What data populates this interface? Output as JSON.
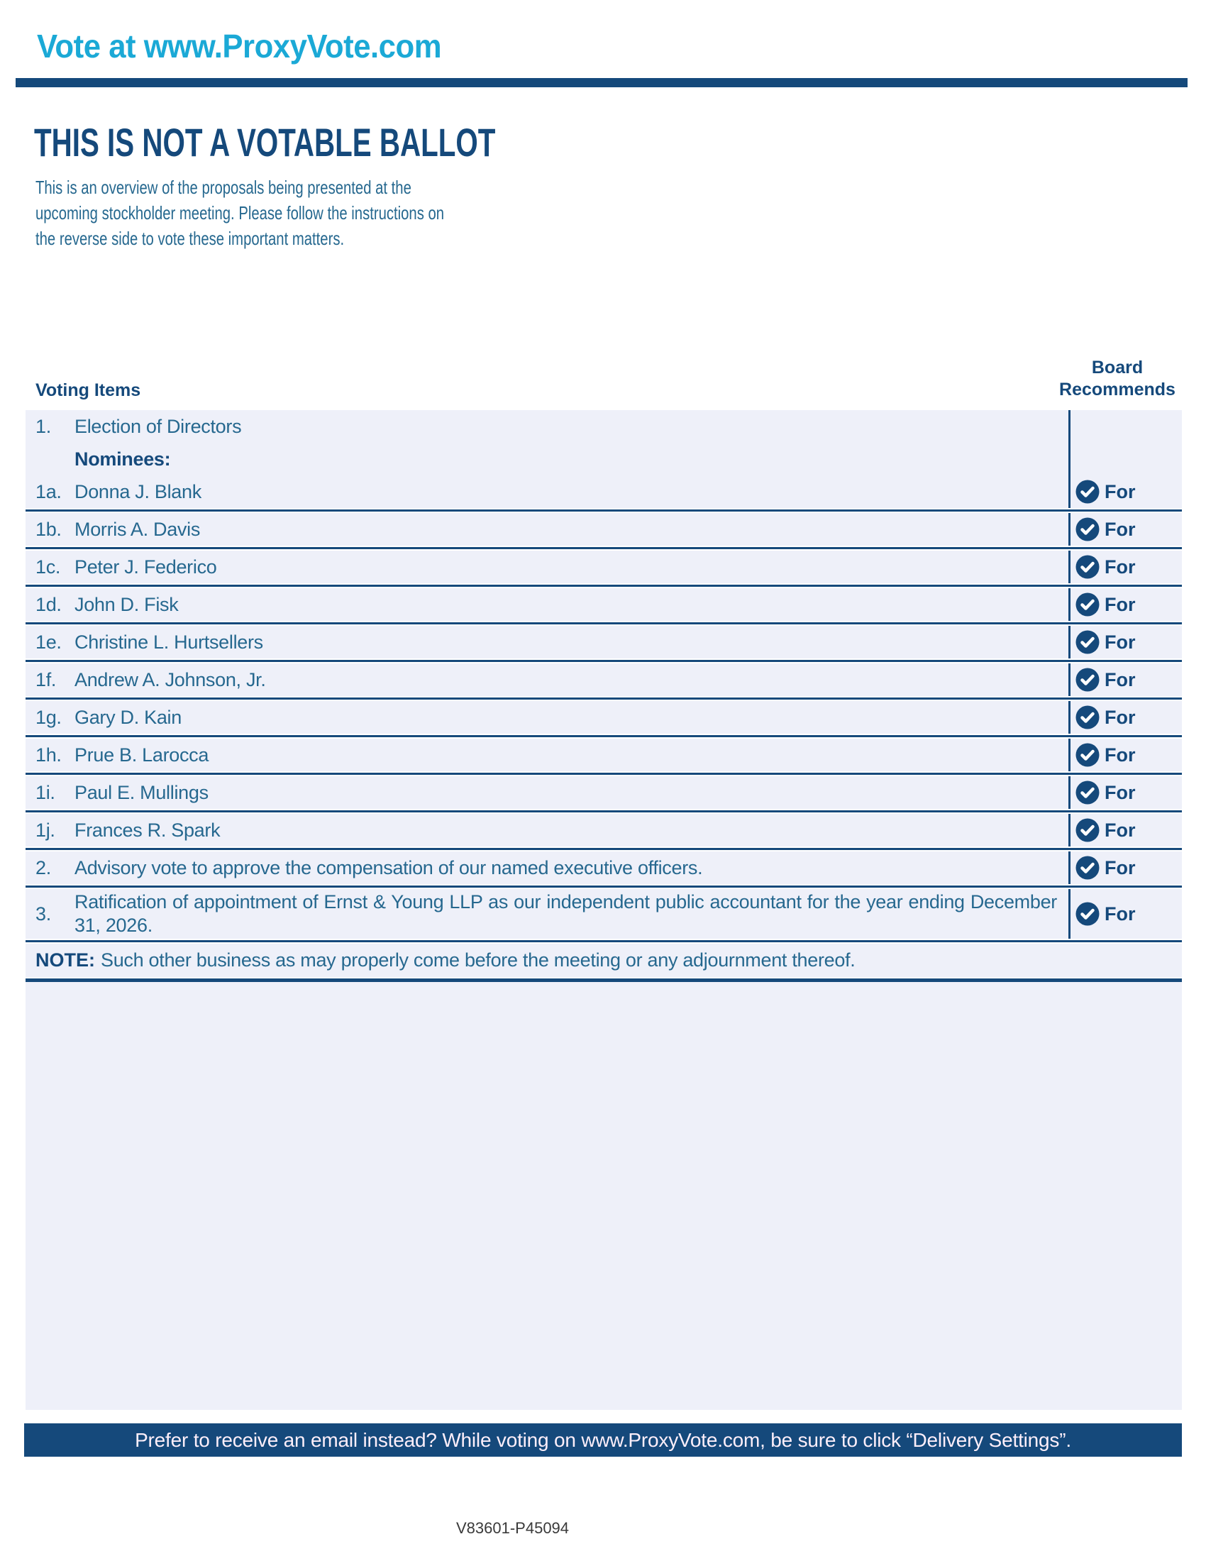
{
  "colors": {
    "cyan": "#1ba9d6",
    "navy": "#15497b",
    "body_blue": "#26688f",
    "row_bg": "#eef0f9",
    "page_bg": "#ffffff",
    "code_text": "#3a3a3a"
  },
  "header": {
    "title": "Vote at www.ProxyVote.com",
    "heading": "THIS IS NOT A VOTABLE BALLOT",
    "intro": "This is an overview of the proposals being presented at the\nupcoming stockholder meeting. Please follow the instructions on\nthe reverse side to vote these important matters."
  },
  "table": {
    "items_header": "Voting Items",
    "recommends_header_line1": "Board",
    "recommends_header_line2": "Recommends",
    "recommend_icon": "check-circle-icon",
    "rows": [
      {
        "num": "1.",
        "text": "Election of Directors",
        "recommend": null,
        "sep_before": false
      },
      {
        "num": "",
        "text": "Nominees:",
        "bold": true,
        "recommend": null,
        "sep_before": false
      },
      {
        "num": "1a.",
        "text": "Donna J. Blank",
        "recommend": "For",
        "sep_before": false
      },
      {
        "num": "1b.",
        "text": "Morris A. Davis",
        "recommend": "For",
        "sep_before": true
      },
      {
        "num": "1c.",
        "text": "Peter J. Federico",
        "recommend": "For",
        "sep_before": true
      },
      {
        "num": "1d.",
        "text": "John D. Fisk",
        "recommend": "For",
        "sep_before": true
      },
      {
        "num": "1e.",
        "text": "Christine L. Hurtsellers",
        "recommend": "For",
        "sep_before": true
      },
      {
        "num": "1f.",
        "text": "Andrew A. Johnson, Jr.",
        "recommend": "For",
        "sep_before": true
      },
      {
        "num": "1g.",
        "text": "Gary D. Kain",
        "recommend": "For",
        "sep_before": true
      },
      {
        "num": "1h.",
        "text": "Prue B. Larocca",
        "recommend": "For",
        "sep_before": true
      },
      {
        "num": "1i.",
        "text": "Paul E. Mullings",
        "recommend": "For",
        "sep_before": true
      },
      {
        "num": "1j.",
        "text": "Frances R. Spark",
        "recommend": "For",
        "sep_before": true
      },
      {
        "num": "2.",
        "text": "Advisory vote to approve the compensation of our named executive officers.",
        "recommend": "For",
        "sep_before": true
      },
      {
        "num": "3.",
        "text": "Ratification of appointment of Ernst & Young LLP as our independent public accountant for the year ending December 31, 2026.",
        "recommend": "For",
        "sep_before": true,
        "justify": true,
        "tall": true
      }
    ],
    "note": {
      "label": "NOTE:",
      "text": "Such other business as may properly come before the meeting or any adjournment thereof."
    }
  },
  "footer": {
    "bar_text": "Prefer to receive an email instead? While voting on www.ProxyVote.com, be sure to click “Delivery Settings”.",
    "code": "V83601-P45094"
  }
}
